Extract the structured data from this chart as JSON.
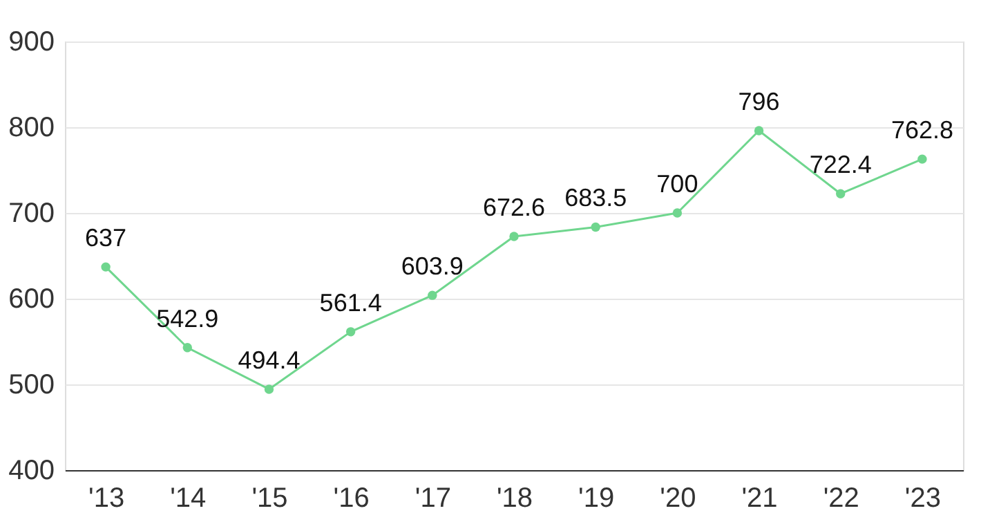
{
  "chart_data": {
    "type": "line",
    "categories": [
      "'13",
      "'14",
      "'15",
      "'16",
      "'17",
      "'18",
      "'19",
      "'20",
      "'21",
      "'22",
      "'23"
    ],
    "series": [
      {
        "color": "#6fd68e",
        "values": [
          637,
          542.9,
          494.4,
          561.4,
          603.9,
          672.6,
          683.5,
          700,
          796,
          722.4,
          762.8
        ]
      }
    ],
    "ylim": [
      400,
      900
    ],
    "yticks": [
      400,
      500,
      600,
      700,
      800,
      900
    ],
    "grid": "y",
    "marker": "circle",
    "line_style": "solid",
    "data_labels": true
  }
}
